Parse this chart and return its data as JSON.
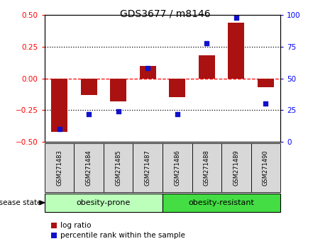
{
  "title": "GDS3677 / m8146",
  "categories": [
    "GSM271483",
    "GSM271484",
    "GSM271485",
    "GSM271487",
    "GSM271486",
    "GSM271488",
    "GSM271489",
    "GSM271490"
  ],
  "log_ratio": [
    -0.42,
    -0.13,
    -0.18,
    0.1,
    -0.15,
    0.18,
    0.44,
    -0.07
  ],
  "percentile_rank": [
    10,
    22,
    24,
    58,
    22,
    78,
    98,
    30
  ],
  "group1_label": "obesity-prone",
  "group1_count": 4,
  "group2_label": "obesity-resistant",
  "group2_count": 4,
  "disease_state_label": "disease state",
  "bar_color": "#AA1111",
  "dot_color": "#1111CC",
  "group1_color": "#BBFFBB",
  "group2_color": "#44DD44",
  "ylim_left": [
    -0.5,
    0.5
  ],
  "ylim_right": [
    0,
    100
  ],
  "yticks_left": [
    -0.5,
    -0.25,
    0,
    0.25,
    0.5
  ],
  "yticks_right": [
    0,
    25,
    50,
    75,
    100
  ],
  "legend_log_ratio": "log ratio",
  "legend_percentile": "percentile rank within the sample",
  "bg_color": "#FFFFFF",
  "plot_bg": "#FFFFFF"
}
